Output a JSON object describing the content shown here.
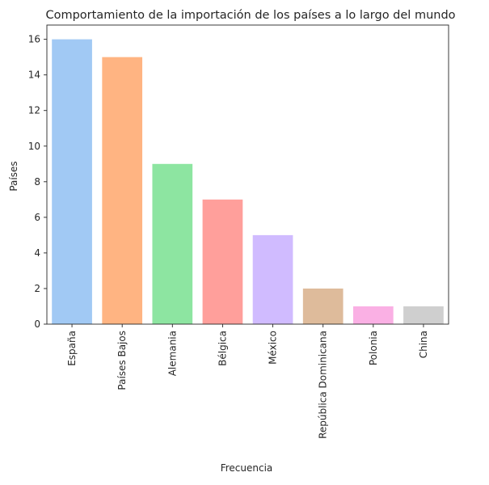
{
  "chart_data": {
    "type": "bar",
    "title": "Comportamiento de la importación de los países a lo largo del mundo",
    "xlabel": "Frecuencia",
    "ylabel": "Países",
    "categories": [
      "España",
      "Países Bajos",
      "Alemania",
      "Bélgica",
      "México",
      "República Dominicana",
      "Polonia",
      "China"
    ],
    "values": [
      16,
      15,
      9,
      7,
      5,
      2,
      1,
      1
    ],
    "colors": [
      "#a1c9f4",
      "#ffb482",
      "#8de5a1",
      "#ff9f9b",
      "#d0bbff",
      "#debb9b",
      "#fab0e4",
      "#cfcfcf"
    ],
    "ylim": [
      0,
      16.8
    ],
    "yticks": [
      0,
      2,
      4,
      6,
      8,
      10,
      12,
      14,
      16
    ],
    "grid": false,
    "legend": "none"
  }
}
